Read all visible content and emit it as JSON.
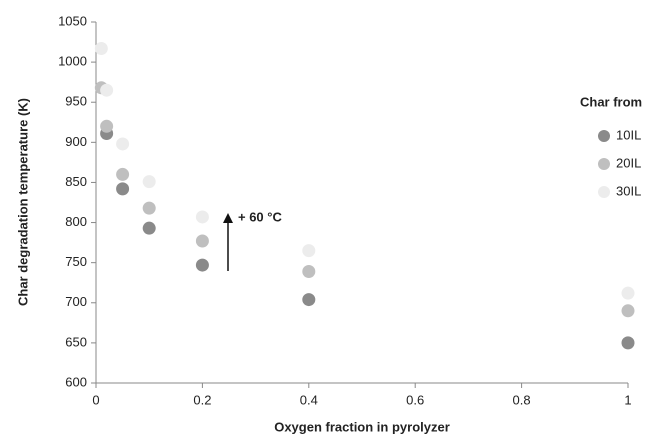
{
  "chart_data": {
    "type": "scatter",
    "xlabel": "Oxygen fraction in pyrolyzer",
    "ylabel": "Char degradation temperature (K)",
    "legend_title": "Char from",
    "legend": "right",
    "annotation": "+ 60 °C",
    "xlim": [
      0,
      1
    ],
    "xticks": [
      0,
      0.2,
      0.4,
      0.6,
      0.8,
      1
    ],
    "ylim": [
      600,
      1050
    ],
    "yticks": [
      600,
      650,
      700,
      750,
      800,
      850,
      900,
      950,
      1000,
      1050
    ],
    "grid": false,
    "series": [
      {
        "name": "10IL",
        "color": "#8a8a8a",
        "x": [
          0.02,
          0.05,
          0.1,
          0.2,
          0.4,
          1
        ],
        "values": [
          911,
          842,
          793,
          747,
          704,
          650
        ]
      },
      {
        "name": "20IL",
        "color": "#bfbfbf",
        "x": [
          0.01,
          0.02,
          0.05,
          0.1,
          0.2,
          0.4,
          1
        ],
        "values": [
          968,
          920,
          860,
          818,
          777,
          739,
          690
        ]
      },
      {
        "name": "30IL",
        "color": "#ececec",
        "x": [
          0.01,
          0.02,
          0.05,
          0.1,
          0.2,
          0.4,
          1
        ],
        "values": [
          1017,
          965,
          898,
          851,
          807,
          765,
          712
        ]
      }
    ]
  }
}
